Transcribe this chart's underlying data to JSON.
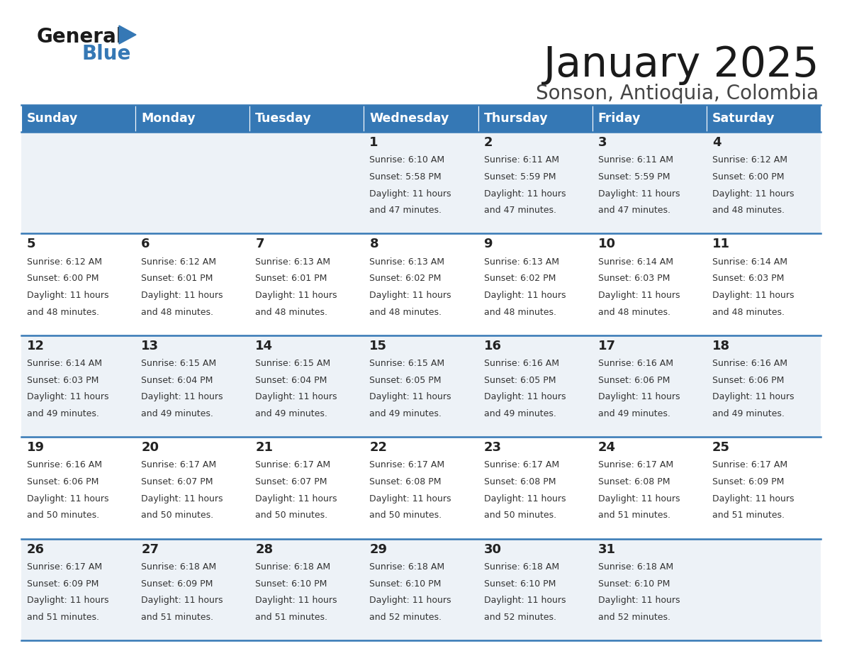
{
  "title": "January 2025",
  "subtitle": "Sonson, Antioquia, Colombia",
  "header_bg_color": "#3578b5",
  "header_text_color": "#ffffff",
  "row_bg_odd": "#edf2f7",
  "row_bg_even": "#ffffff",
  "border_color": "#3578b5",
  "text_color": "#222222",
  "day_headers": [
    "Sunday",
    "Monday",
    "Tuesday",
    "Wednesday",
    "Thursday",
    "Friday",
    "Saturday"
  ],
  "calendar_data": [
    [
      {
        "day": "",
        "sunrise": "",
        "sunset": "",
        "dl1": "",
        "dl2": ""
      },
      {
        "day": "",
        "sunrise": "",
        "sunset": "",
        "dl1": "",
        "dl2": ""
      },
      {
        "day": "",
        "sunrise": "",
        "sunset": "",
        "dl1": "",
        "dl2": ""
      },
      {
        "day": "1",
        "sunrise": "Sunrise: 6:10 AM",
        "sunset": "Sunset: 5:58 PM",
        "dl1": "Daylight: 11 hours",
        "dl2": "and 47 minutes."
      },
      {
        "day": "2",
        "sunrise": "Sunrise: 6:11 AM",
        "sunset": "Sunset: 5:59 PM",
        "dl1": "Daylight: 11 hours",
        "dl2": "and 47 minutes."
      },
      {
        "day": "3",
        "sunrise": "Sunrise: 6:11 AM",
        "sunset": "Sunset: 5:59 PM",
        "dl1": "Daylight: 11 hours",
        "dl2": "and 47 minutes."
      },
      {
        "day": "4",
        "sunrise": "Sunrise: 6:12 AM",
        "sunset": "Sunset: 6:00 PM",
        "dl1": "Daylight: 11 hours",
        "dl2": "and 48 minutes."
      }
    ],
    [
      {
        "day": "5",
        "sunrise": "Sunrise: 6:12 AM",
        "sunset": "Sunset: 6:00 PM",
        "dl1": "Daylight: 11 hours",
        "dl2": "and 48 minutes."
      },
      {
        "day": "6",
        "sunrise": "Sunrise: 6:12 AM",
        "sunset": "Sunset: 6:01 PM",
        "dl1": "Daylight: 11 hours",
        "dl2": "and 48 minutes."
      },
      {
        "day": "7",
        "sunrise": "Sunrise: 6:13 AM",
        "sunset": "Sunset: 6:01 PM",
        "dl1": "Daylight: 11 hours",
        "dl2": "and 48 minutes."
      },
      {
        "day": "8",
        "sunrise": "Sunrise: 6:13 AM",
        "sunset": "Sunset: 6:02 PM",
        "dl1": "Daylight: 11 hours",
        "dl2": "and 48 minutes."
      },
      {
        "day": "9",
        "sunrise": "Sunrise: 6:13 AM",
        "sunset": "Sunset: 6:02 PM",
        "dl1": "Daylight: 11 hours",
        "dl2": "and 48 minutes."
      },
      {
        "day": "10",
        "sunrise": "Sunrise: 6:14 AM",
        "sunset": "Sunset: 6:03 PM",
        "dl1": "Daylight: 11 hours",
        "dl2": "and 48 minutes."
      },
      {
        "day": "11",
        "sunrise": "Sunrise: 6:14 AM",
        "sunset": "Sunset: 6:03 PM",
        "dl1": "Daylight: 11 hours",
        "dl2": "and 48 minutes."
      }
    ],
    [
      {
        "day": "12",
        "sunrise": "Sunrise: 6:14 AM",
        "sunset": "Sunset: 6:03 PM",
        "dl1": "Daylight: 11 hours",
        "dl2": "and 49 minutes."
      },
      {
        "day": "13",
        "sunrise": "Sunrise: 6:15 AM",
        "sunset": "Sunset: 6:04 PM",
        "dl1": "Daylight: 11 hours",
        "dl2": "and 49 minutes."
      },
      {
        "day": "14",
        "sunrise": "Sunrise: 6:15 AM",
        "sunset": "Sunset: 6:04 PM",
        "dl1": "Daylight: 11 hours",
        "dl2": "and 49 minutes."
      },
      {
        "day": "15",
        "sunrise": "Sunrise: 6:15 AM",
        "sunset": "Sunset: 6:05 PM",
        "dl1": "Daylight: 11 hours",
        "dl2": "and 49 minutes."
      },
      {
        "day": "16",
        "sunrise": "Sunrise: 6:16 AM",
        "sunset": "Sunset: 6:05 PM",
        "dl1": "Daylight: 11 hours",
        "dl2": "and 49 minutes."
      },
      {
        "day": "17",
        "sunrise": "Sunrise: 6:16 AM",
        "sunset": "Sunset: 6:06 PM",
        "dl1": "Daylight: 11 hours",
        "dl2": "and 49 minutes."
      },
      {
        "day": "18",
        "sunrise": "Sunrise: 6:16 AM",
        "sunset": "Sunset: 6:06 PM",
        "dl1": "Daylight: 11 hours",
        "dl2": "and 49 minutes."
      }
    ],
    [
      {
        "day": "19",
        "sunrise": "Sunrise: 6:16 AM",
        "sunset": "Sunset: 6:06 PM",
        "dl1": "Daylight: 11 hours",
        "dl2": "and 50 minutes."
      },
      {
        "day": "20",
        "sunrise": "Sunrise: 6:17 AM",
        "sunset": "Sunset: 6:07 PM",
        "dl1": "Daylight: 11 hours",
        "dl2": "and 50 minutes."
      },
      {
        "day": "21",
        "sunrise": "Sunrise: 6:17 AM",
        "sunset": "Sunset: 6:07 PM",
        "dl1": "Daylight: 11 hours",
        "dl2": "and 50 minutes."
      },
      {
        "day": "22",
        "sunrise": "Sunrise: 6:17 AM",
        "sunset": "Sunset: 6:08 PM",
        "dl1": "Daylight: 11 hours",
        "dl2": "and 50 minutes."
      },
      {
        "day": "23",
        "sunrise": "Sunrise: 6:17 AM",
        "sunset": "Sunset: 6:08 PM",
        "dl1": "Daylight: 11 hours",
        "dl2": "and 50 minutes."
      },
      {
        "day": "24",
        "sunrise": "Sunrise: 6:17 AM",
        "sunset": "Sunset: 6:08 PM",
        "dl1": "Daylight: 11 hours",
        "dl2": "and 51 minutes."
      },
      {
        "day": "25",
        "sunrise": "Sunrise: 6:17 AM",
        "sunset": "Sunset: 6:09 PM",
        "dl1": "Daylight: 11 hours",
        "dl2": "and 51 minutes."
      }
    ],
    [
      {
        "day": "26",
        "sunrise": "Sunrise: 6:17 AM",
        "sunset": "Sunset: 6:09 PM",
        "dl1": "Daylight: 11 hours",
        "dl2": "and 51 minutes."
      },
      {
        "day": "27",
        "sunrise": "Sunrise: 6:18 AM",
        "sunset": "Sunset: 6:09 PM",
        "dl1": "Daylight: 11 hours",
        "dl2": "and 51 minutes."
      },
      {
        "day": "28",
        "sunrise": "Sunrise: 6:18 AM",
        "sunset": "Sunset: 6:10 PM",
        "dl1": "Daylight: 11 hours",
        "dl2": "and 51 minutes."
      },
      {
        "day": "29",
        "sunrise": "Sunrise: 6:18 AM",
        "sunset": "Sunset: 6:10 PM",
        "dl1": "Daylight: 11 hours",
        "dl2": "and 52 minutes."
      },
      {
        "day": "30",
        "sunrise": "Sunrise: 6:18 AM",
        "sunset": "Sunset: 6:10 PM",
        "dl1": "Daylight: 11 hours",
        "dl2": "and 52 minutes."
      },
      {
        "day": "31",
        "sunrise": "Sunrise: 6:18 AM",
        "sunset": "Sunset: 6:10 PM",
        "dl1": "Daylight: 11 hours",
        "dl2": "and 52 minutes."
      },
      {
        "day": "",
        "sunrise": "",
        "sunset": "",
        "dl1": "",
        "dl2": ""
      }
    ]
  ]
}
